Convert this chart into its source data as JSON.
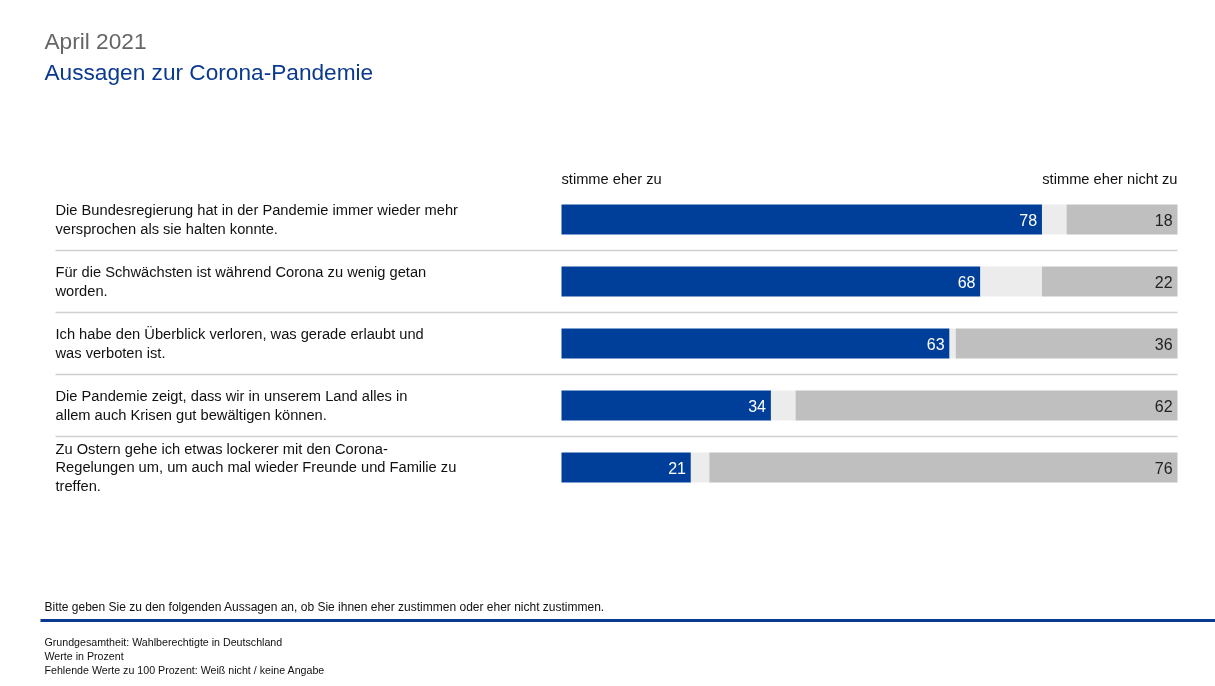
{
  "chart_data": {
    "type": "bar",
    "orientation": "horizontal",
    "title": "April 2021",
    "subtitle": "Aussagen zur Corona-Pandemie",
    "categories": [
      "Die Bundesregierung hat in der Pandemie immer wieder mehr versprochen als sie halten konnte.",
      "Für die Schwächsten ist während Corona zu wenig getan worden.",
      "Ich habe den Überblick verloren, was gerade erlaubt und was verboten ist.",
      "Die Pandemie zeigt, dass wir in unserem Land alles in allem auch Krisen gut bewältigen können.",
      "Zu Ostern gehe ich etwas lockerer mit den Corona-Regelungen um, um auch mal wieder Freunde und Familie zu treffen."
    ],
    "series": [
      {
        "name": "stimme eher zu",
        "color": "#003f99",
        "values": [
          78,
          68,
          63,
          34,
          21
        ]
      },
      {
        "color": "#ececec",
        "values": [
          4,
          10,
          1,
          4,
          3
        ],
        "value_labels": [
          null,
          null,
          null,
          null,
          null
        ]
      },
      {
        "name": "stimme eher nicht zu",
        "color": "#bfbfbf",
        "values": [
          18,
          22,
          36,
          62,
          76
        ]
      }
    ],
    "stacked": true,
    "data_labels": true,
    "legend": false,
    "grid": false,
    "annotations": [
      "Bitte geben Sie zu den folgenden Aussagen an, ob Sie ihnen eher zustimmen oder eher nicht zustimmen.",
      "Grundgesamtheit: Wahlberechtigte in Deutschland",
      "Werte in Prozent",
      "Fehlende Werte zu 100 Prozent: Weiß nicht / keine Angabe"
    ]
  }
}
